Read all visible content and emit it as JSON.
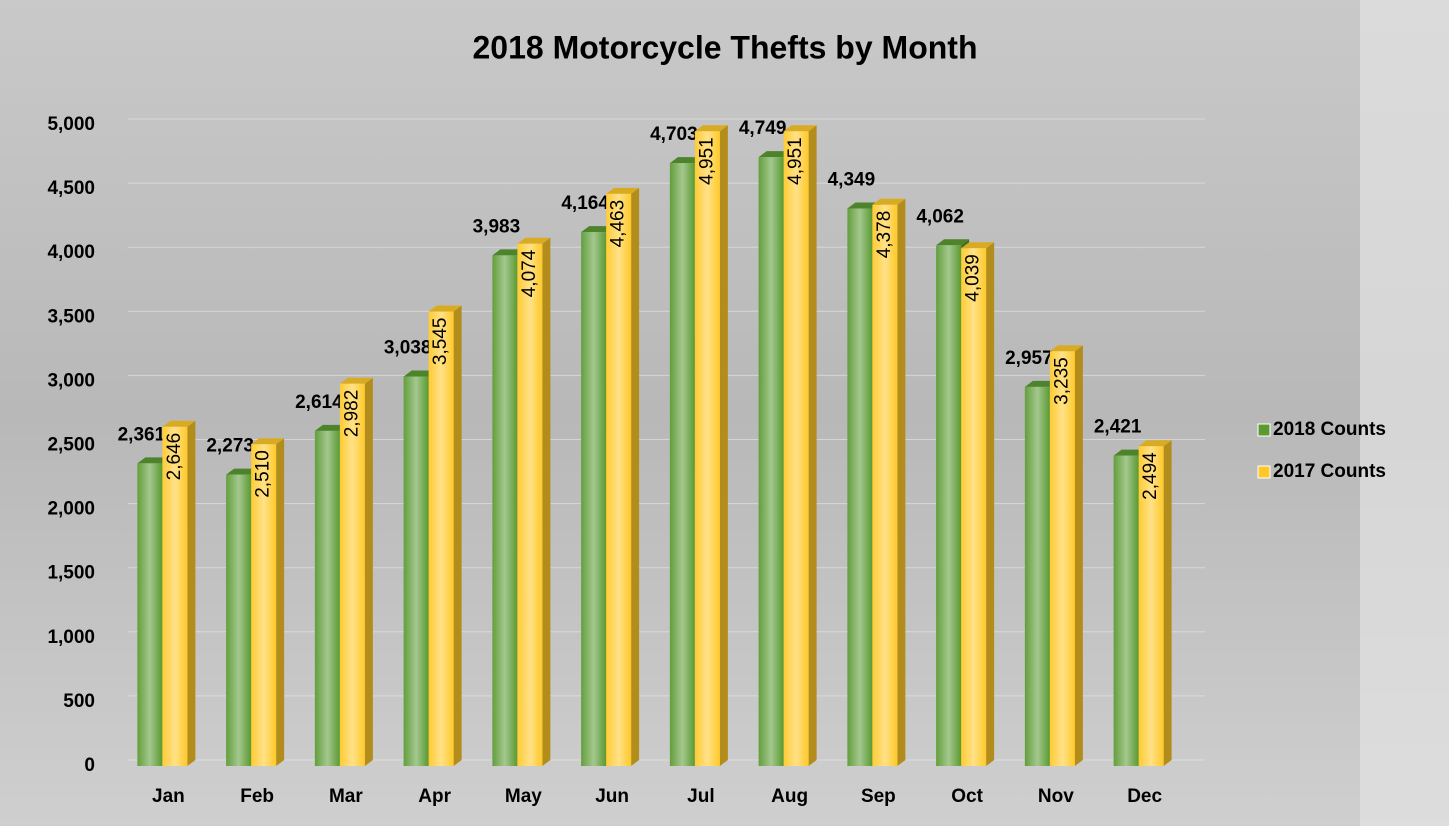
{
  "chart_data": {
    "type": "bar3d",
    "title": "2018 Motorcycle Thefts by Month",
    "categories": [
      "Jan",
      "Feb",
      "Mar",
      "Apr",
      "May",
      "Jun",
      "Jul",
      "Aug",
      "Sep",
      "Oct",
      "Nov",
      "Dec"
    ],
    "series": [
      {
        "name": "2018 Counts",
        "color": "#5a9a32",
        "values": [
          2361,
          2273,
          2614,
          3038,
          3983,
          4164,
          4703,
          4749,
          4349,
          4062,
          2957,
          2421
        ],
        "value_labels": [
          "2,361",
          "2,273",
          "2,614",
          "3,038",
          "3,983",
          "4,164",
          "4,703",
          "4,749",
          "4,349",
          "4,062",
          "2,957",
          "2,421"
        ]
      },
      {
        "name": "2017 Counts",
        "color": "#ffc928",
        "values": [
          2646,
          2510,
          2982,
          3545,
          4074,
          4463,
          4951,
          4951,
          4378,
          4039,
          3235,
          2494
        ],
        "value_labels": [
          "2,646",
          "2,510",
          "2,982",
          "3,545",
          "4,074",
          "4,463",
          "4,951",
          "4,951",
          "4,378",
          "4,039",
          "3,235",
          "2,494"
        ]
      }
    ],
    "ylim": [
      0,
      5000
    ],
    "yticks": [
      0,
      500,
      {
        "value": 1000,
        "label": "1,000"
      },
      {
        "value": 1500,
        "label": "1,500"
      },
      {
        "value": 2000,
        "label": "2,000"
      },
      {
        "value": 2500,
        "label": "2,500"
      },
      {
        "value": 3000,
        "label": "3,000"
      },
      {
        "value": 3500,
        "label": "3,500"
      },
      {
        "value": 4000,
        "label": "4,000"
      },
      {
        "value": 4500,
        "label": "4,500"
      },
      {
        "value": 5000,
        "label": "5,000"
      }
    ],
    "grid": true,
    "legend": "right"
  }
}
